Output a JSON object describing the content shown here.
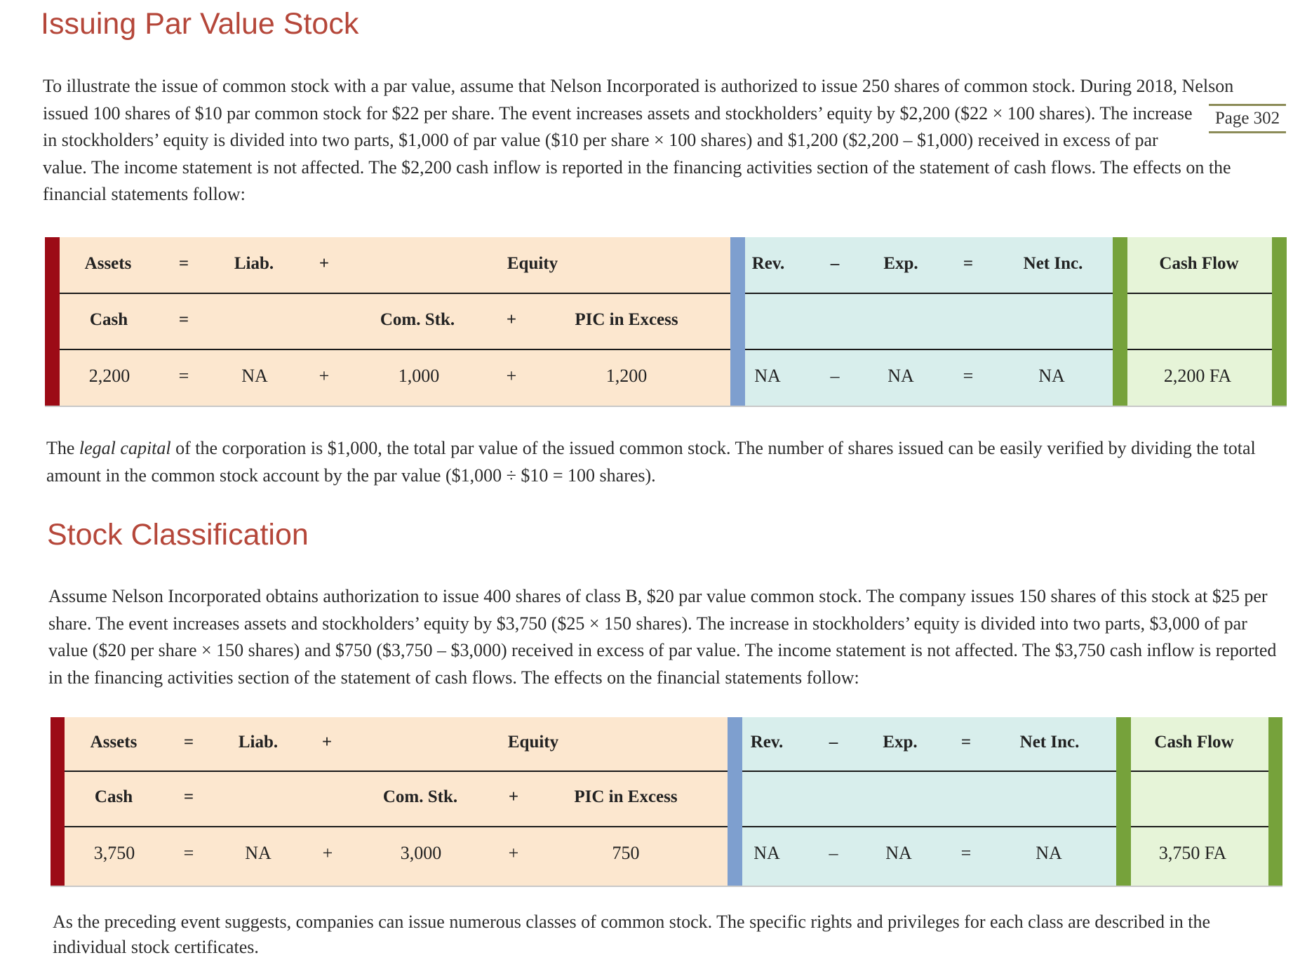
{
  "section1": {
    "heading": "Issuing Par Value Stock",
    "page_marker": "Page 302",
    "paragraph_lines": [
      "To illustrate the issue of common stock with a par value, assume that Nelson Incorporated is authorized to issue 250 shares of common stock. During 2018, Nelson",
      "issued 100 shares of $10 par common stock for $22 per share. The event increases assets and stockholders’ equity by $2,200 ($22 × 100 shares). The increase",
      "in stockholders’ equity is divided into two parts, $1,000 of par value ($10 per share × 100 shares) and $1,200 ($2,200 – $1,000) received in excess of par",
      "value. The income statement is not affected. The $2,200 cash inflow is reported in the financing activities section of the statement of cash flows. The effects on the",
      "financial statements follow:"
    ],
    "table": {
      "header": {
        "assets": "Assets",
        "eq1": "=",
        "liab": "Liab.",
        "plus1": "+",
        "equity": "Equity",
        "rev": "Rev.",
        "minus": "–",
        "exp": "Exp.",
        "eq2": "=",
        "netinc": "Net Inc.",
        "cashflow": "Cash Flow"
      },
      "subheader": {
        "cash": "Cash",
        "eq1": "=",
        "comstk": "Com. Stk.",
        "plus2": "+",
        "pic": "PIC in Excess"
      },
      "values": {
        "cash": "2,200",
        "eq1": "=",
        "liab": "NA",
        "plus1": "+",
        "comstk": "1,000",
        "plus2": "+",
        "pic": "1,200",
        "rev": "NA",
        "minus": "–",
        "exp": "NA",
        "eq2": "=",
        "netinc": "NA",
        "cashflow": "2,200 FA"
      }
    },
    "after": {
      "line1_before": "The ",
      "line1_em": "legal capital",
      "line1_after": " of the corporation is $1,000, the total par value of the issued common stock. The number of shares issued can be easily verified by dividing the total",
      "line2": "amount in the common stock account by the par value ($1,000 ÷ $10 = 100 shares)."
    }
  },
  "section2": {
    "heading": "Stock Classification",
    "paragraph_lines": [
      "Assume Nelson Incorporated obtains authorization to issue 400 shares of class B, $20 par value common stock. The company issues 150 shares of this stock at $25 per",
      "share. The event increases assets and stockholders’ equity by $3,750 ($25 × 150 shares). The increase in stockholders’ equity is divided into two parts, $3,000 of par",
      "value ($20 per share × 150 shares) and $750 ($3,750 – $3,000) received in excess of par value. The income statement is not affected. The $3,750 cash inflow is reported",
      "in the financing activities section of the statement of cash flows. The effects on the financial statements follow:"
    ],
    "table": {
      "header": {
        "assets": "Assets",
        "eq1": "=",
        "liab": "Liab.",
        "plus1": "+",
        "equity": "Equity",
        "rev": "Rev.",
        "minus": "–",
        "exp": "Exp.",
        "eq2": "=",
        "netinc": "Net Inc.",
        "cashflow": "Cash Flow"
      },
      "subheader": {
        "cash": "Cash",
        "eq1": "=",
        "comstk": "Com. Stk.",
        "plus2": "+",
        "pic": "PIC in Excess"
      },
      "values": {
        "cash": "3,750",
        "eq1": "=",
        "liab": "NA",
        "plus1": "+",
        "comstk": "3,000",
        "plus2": "+",
        "pic": "750",
        "rev": "NA",
        "minus": "–",
        "exp": "NA",
        "eq2": "=",
        "netinc": "NA",
        "cashflow": "3,750 FA"
      }
    },
    "after_lines": [
      "As the preceding event suggests, companies can issue numerous classes of common stock. The specific rights and privileges for each class are described in the",
      "individual stock certificates."
    ]
  },
  "colors": {
    "heading": "#b5473a",
    "balance_sheet_bg": "#fce7cf",
    "income_statement_bg": "#d8eeec",
    "cash_flow_bg": "#e6f4d8",
    "balance_bar": "#9c0b16",
    "income_bar": "#7e9fcf",
    "cash_bar": "#76a23b"
  }
}
